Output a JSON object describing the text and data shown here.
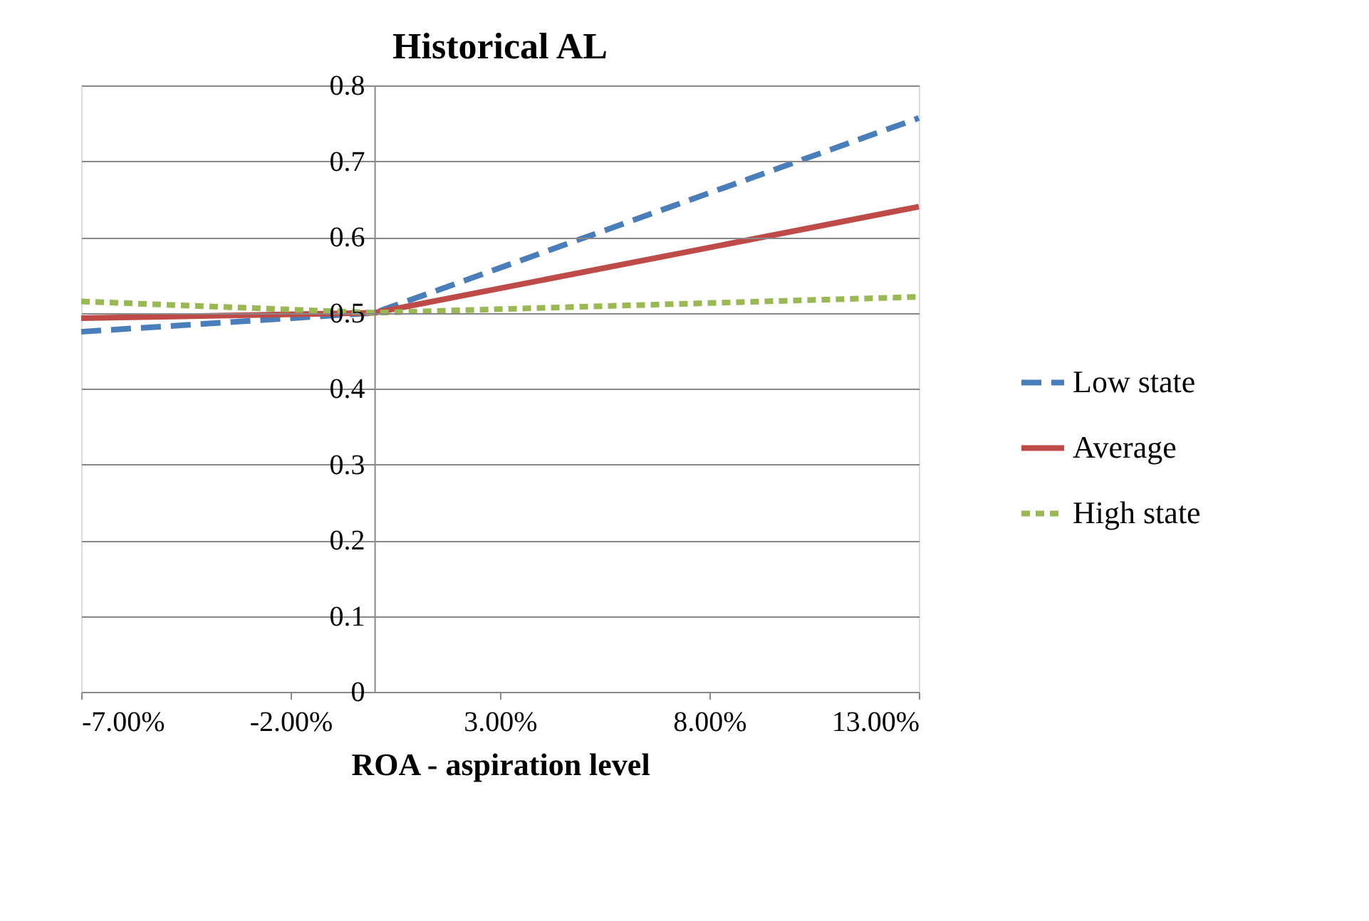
{
  "chart_data": {
    "type": "line",
    "title": "Historical  AL",
    "xlabel": "ROA - aspiration level",
    "x": [
      -0.07,
      0,
      0.13
    ],
    "series": [
      {
        "name": "Low state",
        "color": "#4a7ebb",
        "line_style": "dashed",
        "values": [
          0.475,
          0.5,
          0.757
        ]
      },
      {
        "name": "Average",
        "color": "#be4b48",
        "line_style": "solid",
        "values": [
          0.493,
          0.5,
          0.64
        ]
      },
      {
        "name": "High state",
        "color": "#98b954",
        "line_style": "dotted",
        "values": [
          0.515,
          0.5,
          0.521
        ]
      }
    ],
    "xlim": [
      -0.07,
      0.13
    ],
    "xticks": [
      {
        "value": -0.07,
        "label": "-7.00%"
      },
      {
        "value": -0.02,
        "label": "-2.00%"
      },
      {
        "value": 0.03,
        "label": "3.00%"
      },
      {
        "value": 0.08,
        "label": "8.00%"
      },
      {
        "value": 0.13,
        "label": "13.00%"
      }
    ],
    "ylim": [
      0,
      0.8
    ],
    "yticks": [
      0,
      0.1,
      0.2,
      0.3,
      0.4,
      0.5,
      0.6,
      0.7,
      0.8
    ],
    "grid": "y",
    "legend": "right",
    "marker": "none"
  }
}
